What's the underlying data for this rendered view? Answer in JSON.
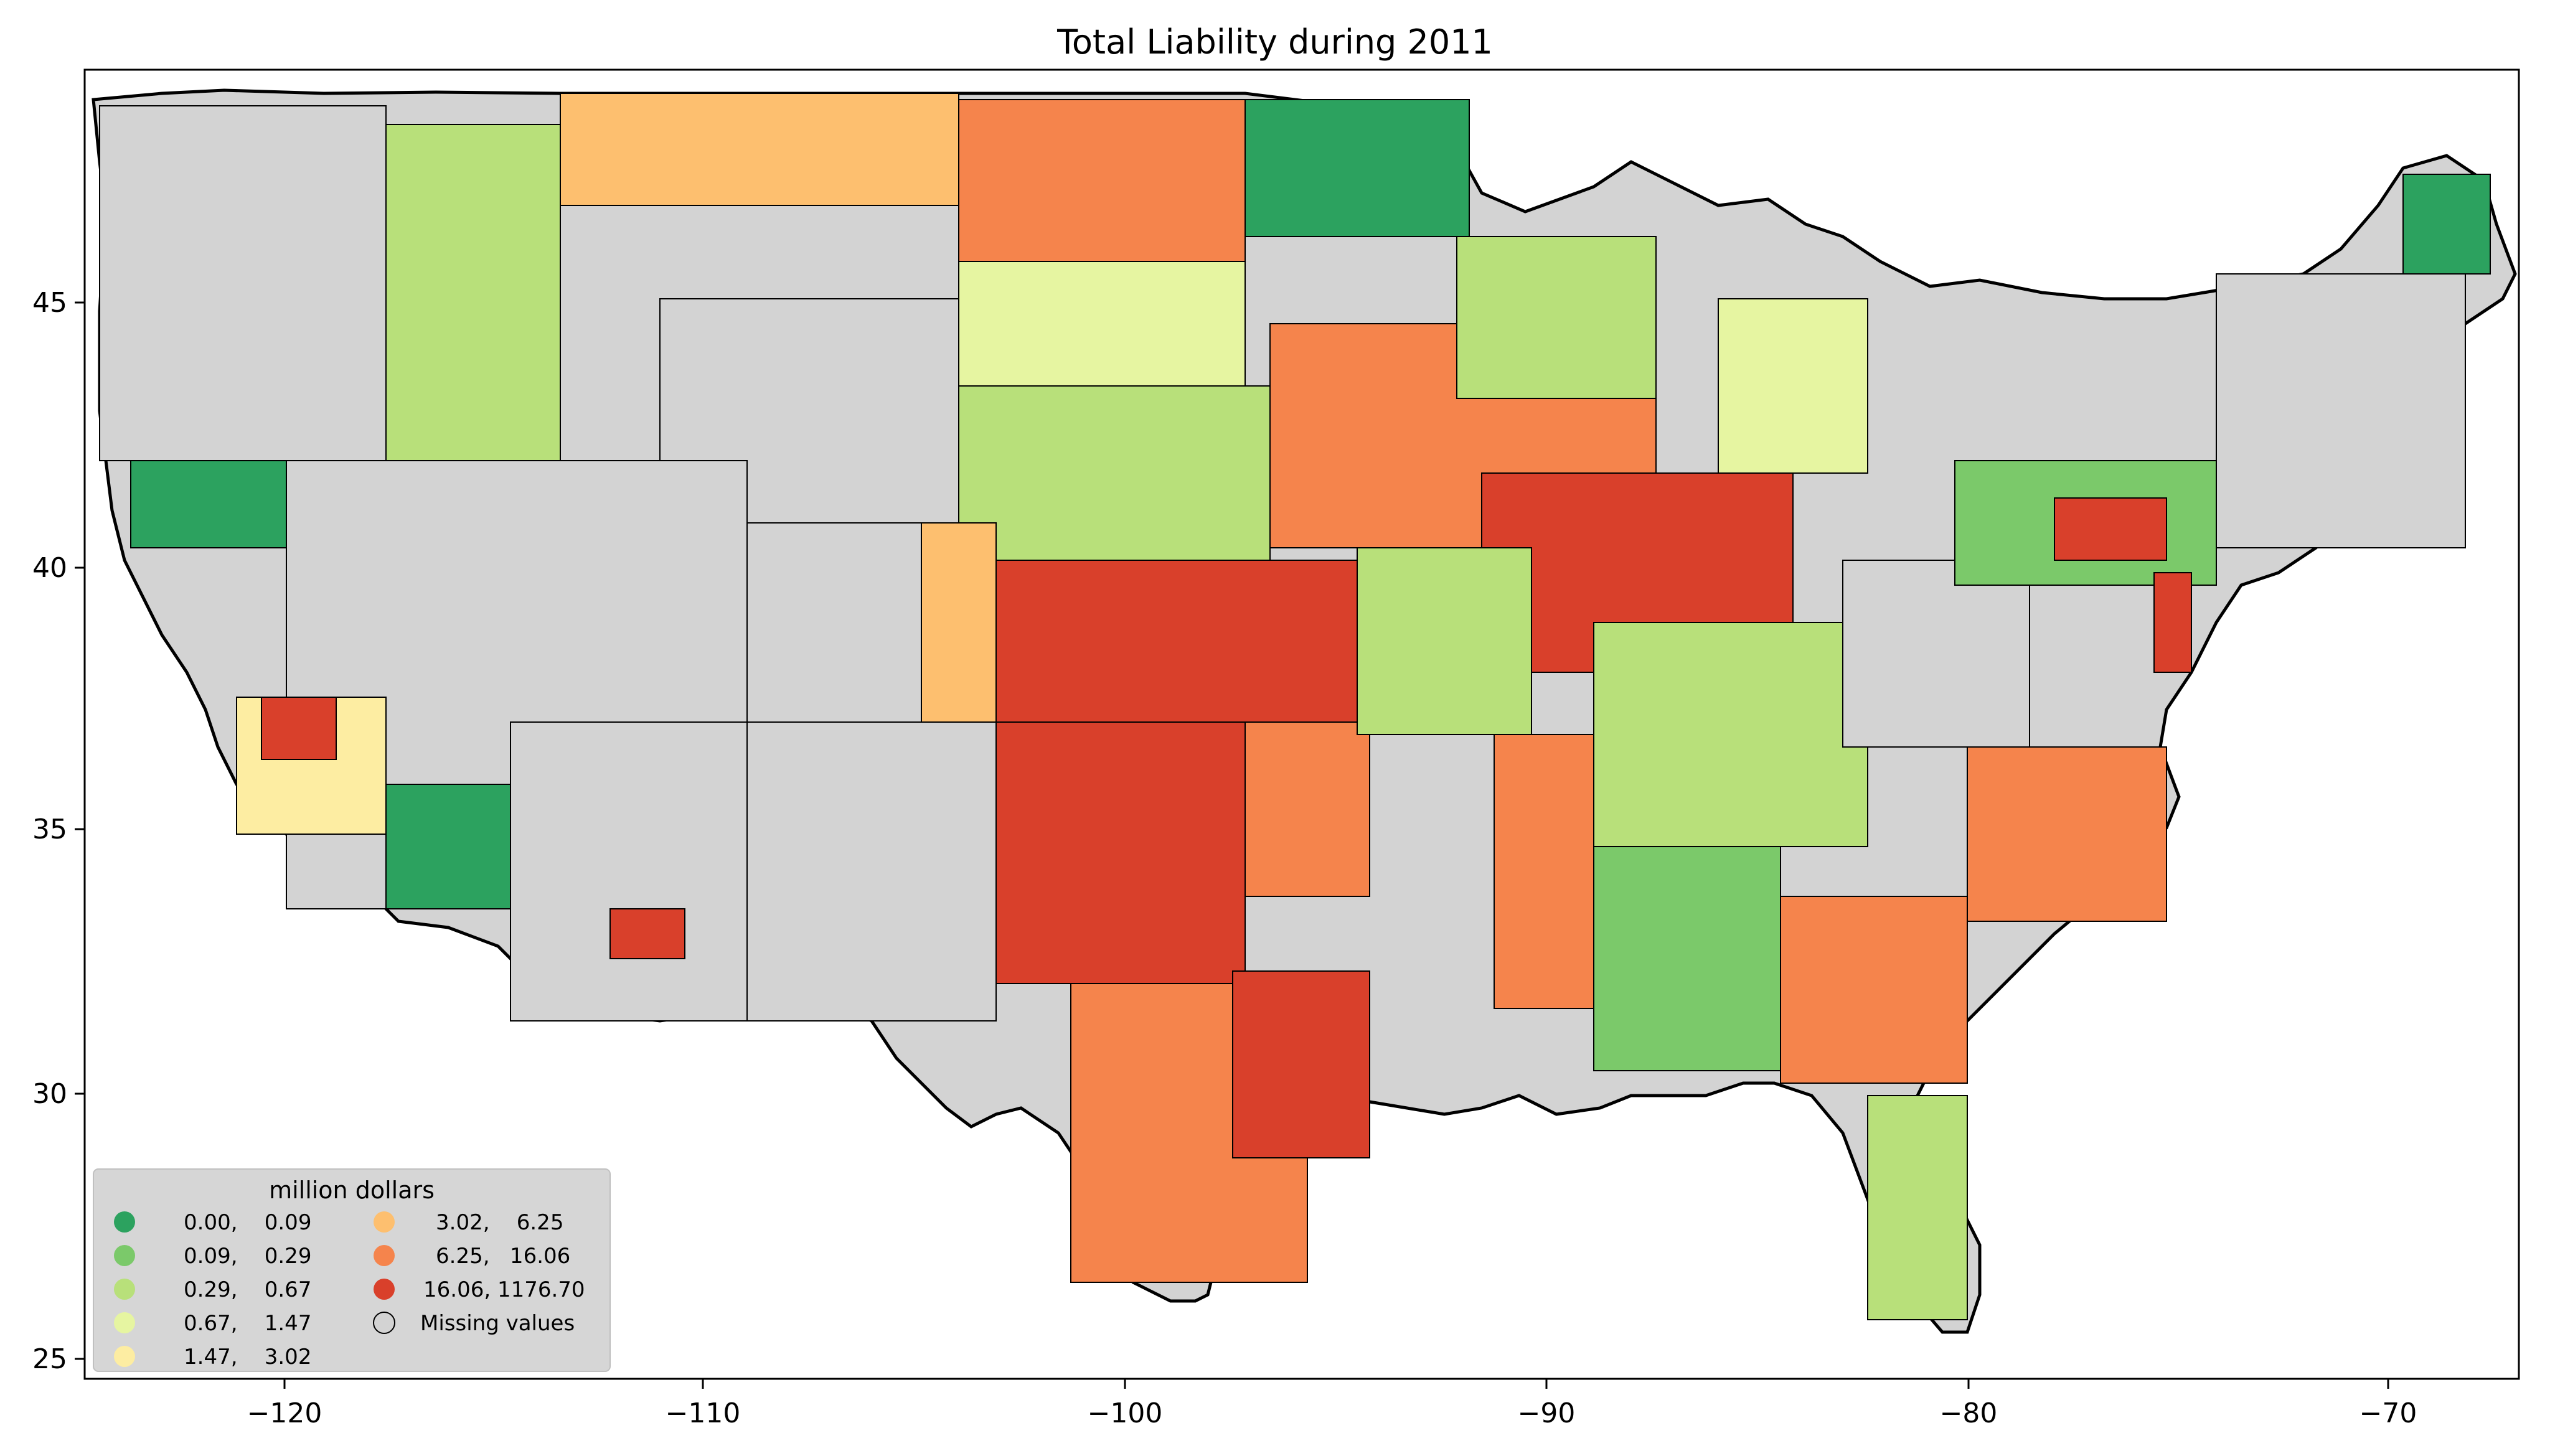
{
  "title": "Total Liability during 2011",
  "axes": {
    "x_ticks": [
      "−120",
      "−110",
      "−100",
      "−90",
      "−80",
      "−70"
    ],
    "y_ticks": [
      "25",
      "30",
      "35",
      "40",
      "45"
    ]
  },
  "legend": {
    "title": "million dollars",
    "items": [
      {
        "label": "0.00,    0.09",
        "color": "#2ca25f"
      },
      {
        "label": "0.09,    0.29",
        "color": "#7bc96a"
      },
      {
        "label": "0.29,    0.67",
        "color": "#b8e07a"
      },
      {
        "label": "0.67,    1.47",
        "color": "#e6f5a1"
      },
      {
        "label": "1.47,    3.02",
        "color": "#fdeda2"
      },
      {
        "label": "3.02,    6.25",
        "color": "#fdbf6f"
      },
      {
        "label": "6.25,   16.06",
        "color": "#f5844c"
      },
      {
        "label": "16.06, 1176.70",
        "color": "#d9402b"
      },
      {
        "label": "Missing values",
        "color": "#d3d3d3"
      }
    ]
  },
  "colors": {
    "missing": "#d3d3d3",
    "border": "#000000"
  }
}
